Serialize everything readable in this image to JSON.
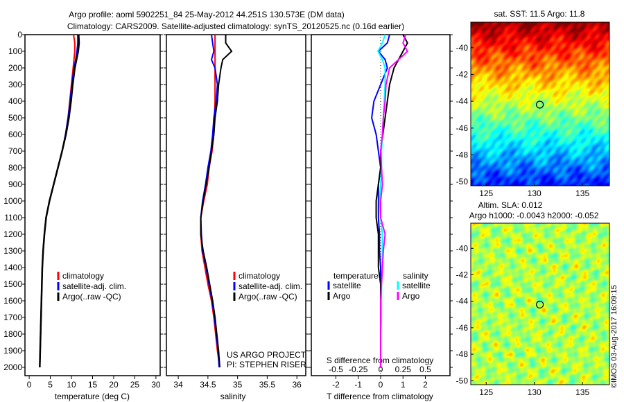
{
  "title_line1": "Argo profile: aoml 5902251_84 25-May-2012 44.251S 130.573E (DM data)",
  "title_line2": "Climatology: CARS2009. Satellite-adjusted climatology: synTS_20120525.nc (0.16d earlier)",
  "side_label": "©IMOS 03-Aug-2017 16:09:15",
  "colors": {
    "climatology": "#ff0000",
    "satellite": "#0000ff",
    "argo": "#000000",
    "s_satellite": "#00ffff",
    "s_argo": "#ff00ff"
  },
  "chart_data": [
    {
      "type": "line",
      "title": "",
      "xlabel": "temperature (deg C)",
      "ylabel": "",
      "xlim": [
        -1,
        31
      ],
      "ylim": [
        2050,
        0
      ],
      "xticks": [
        0,
        5,
        10,
        15,
        20,
        25,
        30
      ],
      "yticks": [
        0,
        100,
        200,
        300,
        400,
        500,
        600,
        700,
        800,
        900,
        1000,
        1100,
        1200,
        1300,
        1400,
        1500,
        1600,
        1700,
        1800,
        1900,
        2000
      ],
      "legend": [
        "climatology",
        "satellite-adj. clim.",
        "Argo(..raw -QC)"
      ],
      "depth": [
        0,
        50,
        100,
        150,
        200,
        300,
        400,
        500,
        600,
        700,
        800,
        900,
        1000,
        1100,
        1200,
        1300,
        1400,
        1500,
        1600,
        1700,
        1800,
        1900,
        2000
      ],
      "series": [
        {
          "name": "climatology",
          "values": [
            10.5,
            10.8,
            10.8,
            10.6,
            10.4,
            10.0,
            9.6,
            9.2,
            8.6,
            7.8,
            6.8,
            5.8,
            4.8,
            4.0,
            3.6,
            3.3,
            3.1,
            3.0,
            2.9,
            2.8,
            2.7,
            2.6,
            2.5
          ]
        },
        {
          "name": "satellite-adj. clim.",
          "values": [
            11.5,
            11.5,
            11.3,
            11.0,
            10.6,
            10.1,
            9.7,
            9.2,
            8.6,
            7.8,
            6.8,
            5.8,
            4.8,
            4.0,
            3.6,
            3.3,
            3.1,
            3.0,
            2.9,
            2.8,
            2.7,
            2.6,
            2.5
          ]
        },
        {
          "name": "Argo(..raw -QC)",
          "values": [
            11.7,
            11.8,
            11.6,
            11.2,
            10.8,
            10.3,
            9.9,
            9.4,
            8.7,
            7.8,
            6.8,
            5.8,
            4.8,
            4.0,
            3.6,
            3.3,
            3.1,
            3.0,
            2.9,
            2.8,
            2.7,
            2.6,
            2.5
          ]
        }
      ]
    },
    {
      "type": "line",
      "xlabel": "salinity",
      "xlim": [
        33.8,
        36.15
      ],
      "ylim": [
        2050,
        0
      ],
      "xticks": [
        34,
        34.5,
        35,
        35.5,
        36
      ],
      "legend": [
        "climatology",
        "satellite-adj. clim.",
        "Argo(..raw -QC)"
      ],
      "annotation": [
        "US ARGO PROJECT",
        "PI: STEPHEN RISER"
      ],
      "depth": [
        0,
        50,
        100,
        150,
        200,
        300,
        400,
        500,
        600,
        700,
        800,
        900,
        1000,
        1100,
        1200,
        1300,
        1400,
        1500,
        1600,
        1700,
        1800,
        1900,
        2000
      ],
      "series": [
        {
          "name": "climatology",
          "values": [
            34.62,
            34.62,
            34.62,
            34.62,
            34.62,
            34.62,
            34.62,
            34.61,
            34.6,
            34.57,
            34.52,
            34.49,
            34.43,
            34.38,
            34.38,
            34.4,
            34.45,
            34.5,
            34.56,
            34.6,
            34.63,
            34.66,
            34.7
          ]
        },
        {
          "name": "satellite-adj. clim.",
          "values": [
            34.56,
            34.58,
            34.6,
            34.56,
            34.62,
            34.66,
            34.64,
            34.6,
            34.58,
            34.55,
            34.5,
            34.46,
            34.41,
            34.38,
            34.39,
            34.41,
            34.47,
            34.52,
            34.57,
            34.61,
            34.64,
            34.67,
            34.69
          ]
        },
        {
          "name": "Argo(..raw -QC)",
          "values": [
            34.8,
            34.8,
            34.9,
            34.75,
            34.72,
            34.68,
            34.66,
            34.62,
            34.6,
            34.56,
            34.52,
            34.47,
            34.42,
            34.38,
            34.38,
            34.42,
            34.48,
            34.53,
            34.58,
            34.62,
            34.65,
            34.68,
            34.7
          ]
        }
      ]
    },
    {
      "type": "line",
      "xlabel": "T difference from climatology",
      "x2label": "S difference from climatology",
      "xlim": [
        -3.1,
        3.1
      ],
      "x2lim": [
        -0.775,
        0.775
      ],
      "ylim": [
        2050,
        0
      ],
      "xticks": [
        -2,
        -1,
        0,
        1,
        2
      ],
      "x2ticks": [
        "-0.5",
        "-0.25",
        "0",
        "0.25",
        "0.5"
      ],
      "legend": {
        "temperature": "temperature",
        "salinity": "salinity",
        "items": [
          "satellite",
          "Argo",
          "satellite",
          "Argo"
        ]
      },
      "depth": [
        0,
        50,
        100,
        150,
        200,
        300,
        400,
        500,
        600,
        700,
        800,
        900,
        1000,
        1100,
        1200,
        1300,
        1400,
        1500,
        1600,
        1700,
        1800,
        1900,
        2000
      ],
      "series": [
        {
          "name": "T satellite",
          "axis": "T",
          "values": [
            0.4,
            0.3,
            -0.1,
            0.2,
            0.3,
            0,
            -0.3,
            -0.4,
            -0.2,
            -0.1,
            0,
            -0.1,
            -0.1,
            -0.1,
            -0.05,
            -0.05,
            0,
            0,
            0,
            0,
            0,
            0,
            0
          ]
        },
        {
          "name": "T Argo",
          "axis": "T",
          "values": [
            1.0,
            1.2,
            1.0,
            0.8,
            0.6,
            0.4,
            0.3,
            0.2,
            0.1,
            0,
            0,
            -0.1,
            -0.2,
            -0.2,
            -0.1,
            -0.1,
            -0.1,
            0,
            0,
            0,
            0,
            0,
            0
          ]
        },
        {
          "name": "S satellite",
          "axis": "S",
          "values": [
            0.05,
            0.02,
            -0.03,
            0.02,
            0.05,
            0.05,
            0.04,
            0.03,
            0.02,
            0.01,
            0.01,
            0,
            -0.01,
            0,
            0.02,
            0.02,
            0.02,
            0.01,
            0.01,
            0.01,
            0,
            0,
            0
          ]
        },
        {
          "name": "S Argo",
          "axis": "S",
          "values": [
            0.28,
            0.25,
            0.3,
            0.2,
            0.1,
            0.06,
            0.05,
            0.03,
            0.02,
            0,
            0.01,
            0.02,
            0,
            0,
            0.05,
            0.03,
            0.02,
            0.01,
            0,
            0,
            0,
            0,
            0
          ]
        }
      ]
    },
    {
      "type": "heatmap",
      "title": "sat. SST: 11.5 Argo: 11.8",
      "lonlim": [
        123.4,
        137.8
      ],
      "latlim": [
        -50.3,
        -38.1
      ],
      "xticks": [
        125,
        130,
        135
      ],
      "yticks": [
        -40,
        -42,
        -44,
        -46,
        -48,
        -50
      ],
      "marker": [
        130.573,
        -44.251
      ]
    },
    {
      "type": "heatmap",
      "title": "Altim. SLA: 0.012",
      "subtitle": "Argo h1000: -0.0043 h2000: -0.052",
      "lonlim": [
        123.4,
        137.8
      ],
      "latlim": [
        -50.3,
        -38.1
      ],
      "xticks": [
        125,
        130,
        135
      ],
      "yticks": [
        -40,
        -42,
        -44,
        -46,
        -48,
        -50
      ],
      "marker": [
        130.573,
        -44.251
      ]
    }
  ]
}
